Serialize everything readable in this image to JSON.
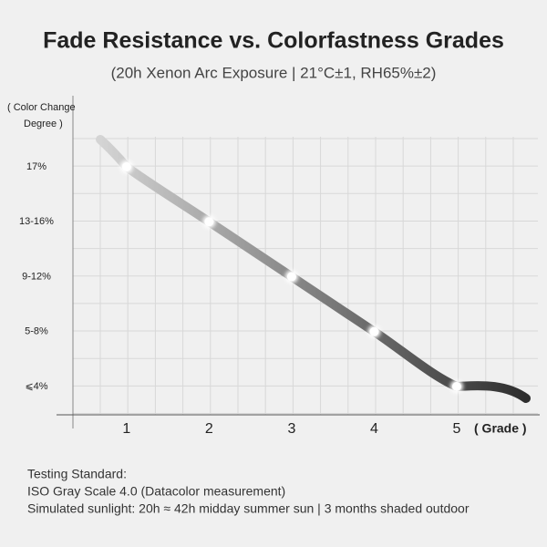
{
  "chart_data": {
    "type": "line",
    "title": "Fade Resistance vs. Colorfastness Grades",
    "subtitle": "(20h Xenon Arc Exposure | 21°C±1, RH65%±2)",
    "y_label": [
      "( Color Change",
      "Degree )"
    ],
    "x_label": "( Grade )",
    "x": [
      1,
      2,
      3,
      4,
      5
    ],
    "xlim": [
      0.35,
      6
    ],
    "xticks": [
      1,
      2,
      3,
      4,
      5
    ],
    "y_categories": [
      "⩽4%",
      "5-8%",
      "9-12%",
      "13-16%",
      "17%"
    ],
    "values": [
      "17%",
      "13-16%",
      "9-12%",
      "5-8%",
      "⩽4%"
    ],
    "footnote": [
      "Testing Standard:",
      "ISO Gray Scale 4.0 (Datacolor measurement)",
      "Simulated sunlight: 20h ≈ 42h midday summer sun | 3 months shaded outdoor"
    ]
  }
}
